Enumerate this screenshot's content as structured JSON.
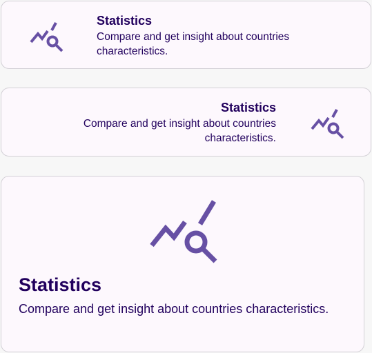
{
  "colors": {
    "accent": "#6750a4",
    "text": "#21005d",
    "card_background": "#fdf8fd",
    "card_border": "#d3d0d6",
    "page_background": "#f7f7f7"
  },
  "cards": [
    {
      "icon": "statistics-chart-search-icon",
      "title": "Statistics",
      "description": "Compare and get insight about countries characteristics."
    },
    {
      "icon": "statistics-chart-search-icon",
      "title": "Statistics",
      "description": "Compare and get insight about countries characteristics."
    },
    {
      "icon": "statistics-chart-search-icon",
      "title": "Statistics",
      "description": "Compare and get insight about countries characteristics."
    }
  ]
}
